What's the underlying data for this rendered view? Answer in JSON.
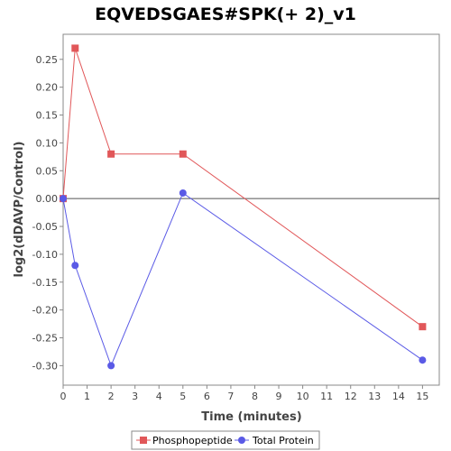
{
  "chart_data": {
    "type": "line",
    "title": "EQVEDSGAES#SPK(+ 2)_v1",
    "xlabel": "Time (minutes)",
    "ylabel": "log2(dDAVP/Control)",
    "x_ticks": [
      0,
      1,
      2,
      3,
      4,
      5,
      6,
      7,
      8,
      9,
      10,
      11,
      12,
      13,
      14,
      15
    ],
    "y_ticks": [
      0.25,
      0.2,
      0.15,
      0.1,
      0.05,
      0.0,
      -0.05,
      -0.1,
      -0.15,
      -0.2,
      -0.25,
      -0.3
    ],
    "y_tick_labels": [
      "0.25",
      "0.20",
      "0.15",
      "0.10",
      "0.05",
      "0.00",
      "-0.05",
      "-0.10",
      "-0.15",
      "-0.20",
      "-0.25",
      "-0.30"
    ],
    "xlim": [
      0,
      15.7
    ],
    "ylim": [
      -0.335,
      0.295
    ],
    "zero_line": true,
    "legend_position": "bottom",
    "series": [
      {
        "name": "Phosphopeptide",
        "color": "#e15759",
        "marker": "square",
        "x": [
          0,
          0.5,
          2,
          5,
          15
        ],
        "y": [
          0.0,
          0.27,
          0.08,
          0.08,
          -0.23
        ]
      },
      {
        "name": "Total Protein",
        "color": "#5a5ae6",
        "marker": "circle",
        "x": [
          0,
          0.5,
          2,
          5,
          15
        ],
        "y": [
          0.0,
          -0.12,
          -0.3,
          0.01,
          -0.29
        ]
      }
    ]
  }
}
